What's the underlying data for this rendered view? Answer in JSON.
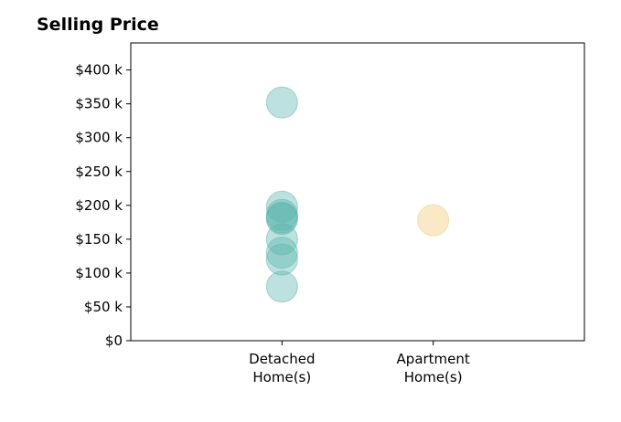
{
  "chart_data": {
    "type": "scatter",
    "title": "Selling Price",
    "xlabel": "",
    "ylabel": "",
    "categories": [
      "Detached\nHome(s)",
      "Apartment\nHome(s)"
    ],
    "ylim": [
      0,
      440000
    ],
    "xlim": [
      -1,
      2
    ],
    "yticks": [
      0,
      50000,
      100000,
      150000,
      200000,
      250000,
      300000,
      350000,
      400000
    ],
    "ytick_labels": [
      "$0",
      "$50 k",
      "$100 k",
      "$150 k",
      "$200 k",
      "$250 k",
      "$300 k",
      "$350 k",
      "$400 k"
    ],
    "grid": false,
    "series": [
      {
        "category": "Detached\nHome(s)",
        "color": "#5ab4ac",
        "values": [
          352000,
          198000,
          186000,
          182000,
          180000,
          150000,
          130000,
          120000,
          80000
        ]
      },
      {
        "category": "Apartment\nHome(s)",
        "color": "#f0c870",
        "values": [
          178000
        ]
      }
    ]
  }
}
